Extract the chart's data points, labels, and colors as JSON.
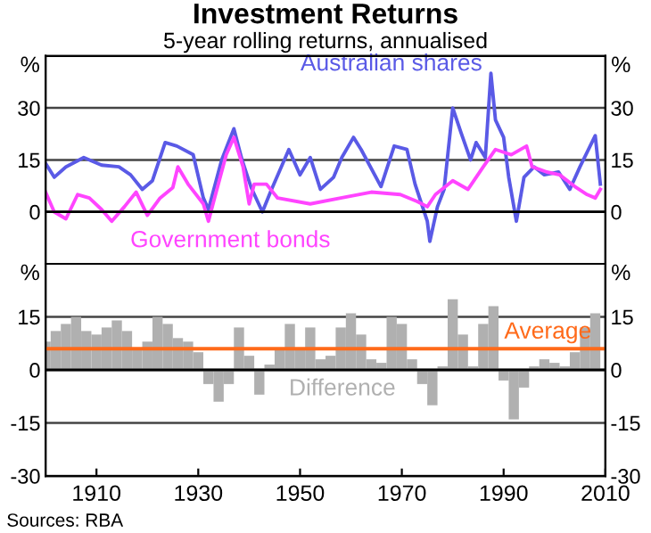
{
  "chart_data": [
    {
      "type": "line",
      "title": "Investment Returns",
      "subtitle": "5-year rolling returns, annualised",
      "ylabel": "%",
      "y2label": "%",
      "xlim": [
        1900,
        2010
      ],
      "ylim": [
        -15,
        45
      ],
      "yticks": [
        0,
        15,
        30
      ],
      "y2lim": [
        -15,
        45
      ],
      "y2ticks": [
        0,
        15,
        30
      ],
      "grid": "y",
      "legend": false,
      "tick_labels": "y",
      "series": [
        {
          "name": "Australian shares",
          "color": "#5a5ae6",
          "x": [
            1900,
            1901.7,
            1904,
            1907.5,
            1911,
            1914.4,
            1916.7,
            1919,
            1921,
            1923.5,
            1925.8,
            1929,
            1931,
            1932,
            1934.6,
            1937,
            1938.6,
            1940.4,
            1942.6,
            1944.4,
            1947.8,
            1950,
            1952,
            1954,
            1956.6,
            1958.2,
            1960.5,
            1962,
            1965.9,
            1968.5,
            1971,
            1972.6,
            1975,
            1975.5,
            1977,
            1978.3,
            1980,
            1981.6,
            1983.5,
            1984.6,
            1986.4,
            1987.5,
            1988.4,
            1990,
            1991,
            1992.5,
            1994,
            1996,
            1998,
            2000.8,
            2003,
            2005,
            2008,
            2009
          ],
          "values": [
            14,
            10,
            13,
            15.7,
            13.5,
            13,
            10.7,
            6.5,
            9,
            20,
            19,
            16.5,
            4,
            0.7,
            15,
            24,
            15,
            7,
            0,
            6.5,
            18,
            10.7,
            15.7,
            6.5,
            10,
            15.7,
            21.5,
            18,
            7.3,
            19,
            18,
            8,
            -2.7,
            -8.5,
            1.5,
            6.5,
            30,
            23,
            15,
            20,
            15.7,
            40,
            26.5,
            21.5,
            10,
            -2.7,
            10,
            13,
            10.7,
            11.5,
            6.5,
            13,
            22,
            8
          ]
        },
        {
          "name": "Government bonds",
          "color": "#ff44ff",
          "x": [
            1900,
            1901.7,
            1904,
            1906.3,
            1908.6,
            1911,
            1913,
            1915.5,
            1917.8,
            1920,
            1922.5,
            1925,
            1926,
            1928,
            1931,
            1932,
            1933.2,
            1935.5,
            1937,
            1938.8,
            1940,
            1941,
            1943.4,
            1945.6,
            1952,
            1958,
            1964,
            1969.7,
            1973,
            1975,
            1976.6,
            1980,
            1983,
            1986,
            1988.4,
            1991.5,
            1994.5,
            1995.6,
            1998.5,
            2001,
            2004,
            2006.4,
            2008,
            2009
          ],
          "values": [
            5.7,
            0,
            -2,
            5,
            4,
            0.7,
            -2.7,
            1.5,
            5.7,
            -1,
            4,
            7,
            13,
            8,
            2.3,
            -2.7,
            4,
            16.5,
            21.5,
            13,
            2.3,
            8,
            8,
            4,
            2.3,
            4,
            5.7,
            5,
            3,
            1.5,
            5,
            9,
            6.5,
            13,
            18,
            16.5,
            19,
            13,
            11.5,
            10.7,
            7.3,
            5,
            4,
            6.5
          ]
        }
      ],
      "annotations": [
        "Sources: RBA"
      ]
    },
    {
      "type": "bar",
      "ylabel": "%",
      "y2label": "%",
      "xlim": [
        1900,
        2010
      ],
      "xticks": [
        1910,
        1930,
        1950,
        1970,
        1990,
        2010
      ],
      "ylim": [
        -30,
        30
      ],
      "yticks": [
        -30,
        -15,
        0,
        15
      ],
      "y2lim": [
        -30,
        30
      ],
      "y2ticks": [
        -30,
        -15,
        0,
        15
      ],
      "grid": "y",
      "legend": false,
      "series": [
        {
          "name": "Difference",
          "color": "#b0b0b0",
          "x": [
            1900,
            1902,
            1904,
            1906,
            1908,
            1910,
            1912,
            1914,
            1916,
            1918,
            1920,
            1922,
            1924,
            1926,
            1928,
            1930,
            1932,
            1934,
            1936,
            1938,
            1940,
            1942,
            1944,
            1946,
            1948,
            1950,
            1952,
            1954,
            1956,
            1958,
            1960,
            1962,
            1964,
            1966,
            1968,
            1970,
            1972,
            1974,
            1976,
            1978,
            1980,
            1982,
            1984,
            1986,
            1988,
            1990,
            1992,
            1994,
            1996,
            1998,
            2000,
            2002,
            2004,
            2006,
            2008
          ],
          "values": [
            8,
            11,
            13,
            15,
            11,
            10,
            12,
            14,
            11,
            6,
            8,
            15,
            13,
            9,
            8,
            5,
            -4,
            -9,
            -4,
            12,
            4,
            -7,
            1.5,
            6,
            13,
            6,
            12,
            3,
            4,
            12,
            16,
            10,
            3,
            2,
            15,
            13,
            3,
            -4,
            -10,
            1,
            20,
            10,
            1,
            13,
            18,
            -3,
            -14,
            -5,
            1,
            3,
            2,
            1,
            5,
            12,
            16
          ]
        }
      ],
      "ref_lines": [
        {
          "axis": "y",
          "value": 6,
          "label": "Average",
          "color": "#ff6a1a"
        }
      ]
    }
  ]
}
